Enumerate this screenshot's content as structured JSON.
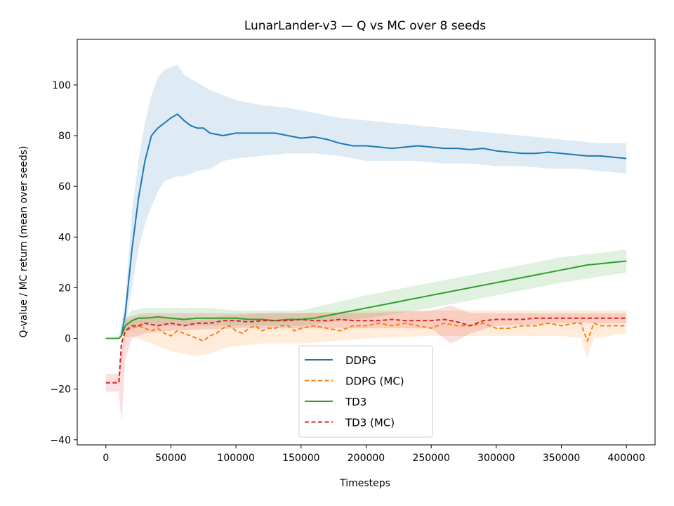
{
  "chart_data": {
    "type": "line",
    "title": "LunarLander-v3 — Q vs MC over 8 seeds",
    "xlabel": "Timesteps",
    "ylabel": "Q-value / MC return (mean over seeds)",
    "xlim": [
      -22000,
      422000
    ],
    "ylim": [
      -42,
      118
    ],
    "xticks": [
      0,
      50000,
      100000,
      150000,
      200000,
      250000,
      300000,
      350000,
      400000
    ],
    "xtick_labels": [
      "0",
      "50000",
      "100000",
      "150000",
      "200000",
      "250000",
      "300000",
      "350000",
      "400000"
    ],
    "yticks": [
      -40,
      -20,
      0,
      20,
      40,
      60,
      80,
      100
    ],
    "ytick_labels": [
      "−40",
      "−20",
      "0",
      "20",
      "40",
      "60",
      "80",
      "100"
    ],
    "grid": false,
    "legend_position": "lower-center",
    "series": [
      {
        "name": "DDPG",
        "color": "#1f77b4",
        "dash": "solid",
        "points": [
          [
            0,
            0
          ],
          [
            5000,
            0
          ],
          [
            10000,
            0
          ],
          [
            12000,
            1
          ],
          [
            15000,
            10
          ],
          [
            20000,
            35
          ],
          [
            25000,
            55
          ],
          [
            30000,
            70
          ],
          [
            35000,
            80
          ],
          [
            40000,
            83
          ],
          [
            45000,
            85
          ],
          [
            50000,
            87
          ],
          [
            55000,
            88.5
          ],
          [
            60000,
            86
          ],
          [
            65000,
            84
          ],
          [
            70000,
            83
          ],
          [
            75000,
            83
          ],
          [
            80000,
            81
          ],
          [
            90000,
            80
          ],
          [
            100000,
            81
          ],
          [
            110000,
            81
          ],
          [
            120000,
            81
          ],
          [
            130000,
            81
          ],
          [
            140000,
            80
          ],
          [
            150000,
            79
          ],
          [
            160000,
            79.5
          ],
          [
            170000,
            78.5
          ],
          [
            180000,
            77
          ],
          [
            190000,
            76
          ],
          [
            200000,
            76
          ],
          [
            210000,
            75.5
          ],
          [
            220000,
            75
          ],
          [
            230000,
            75.5
          ],
          [
            240000,
            76
          ],
          [
            250000,
            75.5
          ],
          [
            260000,
            75
          ],
          [
            270000,
            75
          ],
          [
            280000,
            74.5
          ],
          [
            290000,
            75
          ],
          [
            300000,
            74
          ],
          [
            310000,
            73.5
          ],
          [
            320000,
            73
          ],
          [
            330000,
            73
          ],
          [
            340000,
            73.5
          ],
          [
            350000,
            73
          ],
          [
            360000,
            72.5
          ],
          [
            370000,
            72
          ],
          [
            380000,
            72
          ],
          [
            390000,
            71.5
          ],
          [
            400000,
            71
          ]
        ],
        "band": [
          [
            0,
            0,
            0
          ],
          [
            10000,
            0,
            0
          ],
          [
            15000,
            5,
            15
          ],
          [
            20000,
            20,
            50
          ],
          [
            25000,
            35,
            70
          ],
          [
            30000,
            45,
            85
          ],
          [
            35000,
            52,
            96
          ],
          [
            40000,
            58,
            103
          ],
          [
            45000,
            62,
            106
          ],
          [
            50000,
            63,
            107
          ],
          [
            55000,
            64,
            108
          ],
          [
            60000,
            64,
            104
          ],
          [
            70000,
            66,
            101
          ],
          [
            80000,
            67,
            98
          ],
          [
            90000,
            70,
            96
          ],
          [
            100000,
            71,
            94
          ],
          [
            120000,
            72,
            92
          ],
          [
            140000,
            73,
            91
          ],
          [
            160000,
            73,
            89
          ],
          [
            180000,
            72,
            87
          ],
          [
            200000,
            70,
            86
          ],
          [
            220000,
            70,
            85
          ],
          [
            240000,
            70,
            84
          ],
          [
            260000,
            69,
            83
          ],
          [
            280000,
            69,
            82
          ],
          [
            300000,
            68,
            81
          ],
          [
            320000,
            68,
            80
          ],
          [
            340000,
            67,
            79
          ],
          [
            360000,
            67,
            78
          ],
          [
            380000,
            66,
            77
          ],
          [
            400000,
            65,
            77
          ]
        ]
      },
      {
        "name": "DDPG (MC)",
        "color": "#ff7f0e",
        "dash": "dashed",
        "points": [
          [
            0,
            -17.5
          ],
          [
            5000,
            -17.5
          ],
          [
            10000,
            -17.5
          ],
          [
            12000,
            -2
          ],
          [
            15000,
            3
          ],
          [
            20000,
            4
          ],
          [
            25000,
            5
          ],
          [
            30000,
            4
          ],
          [
            35000,
            3
          ],
          [
            40000,
            4
          ],
          [
            45000,
            2
          ],
          [
            50000,
            1
          ],
          [
            55000,
            3
          ],
          [
            60000,
            2
          ],
          [
            65000,
            1
          ],
          [
            70000,
            0
          ],
          [
            75000,
            -1
          ],
          [
            80000,
            1
          ],
          [
            85000,
            2
          ],
          [
            90000,
            4
          ],
          [
            95000,
            5
          ],
          [
            100000,
            3
          ],
          [
            105000,
            2
          ],
          [
            110000,
            4
          ],
          [
            115000,
            5
          ],
          [
            120000,
            3
          ],
          [
            125000,
            4
          ],
          [
            130000,
            4
          ],
          [
            135000,
            5
          ],
          [
            140000,
            5
          ],
          [
            145000,
            3
          ],
          [
            150000,
            4
          ],
          [
            160000,
            5
          ],
          [
            170000,
            4
          ],
          [
            180000,
            3
          ],
          [
            190000,
            5
          ],
          [
            200000,
            5
          ],
          [
            210000,
            6
          ],
          [
            220000,
            5
          ],
          [
            230000,
            6
          ],
          [
            240000,
            5
          ],
          [
            250000,
            4
          ],
          [
            260000,
            6
          ],
          [
            270000,
            5
          ],
          [
            280000,
            5
          ],
          [
            290000,
            6
          ],
          [
            300000,
            4
          ],
          [
            310000,
            4
          ],
          [
            320000,
            5
          ],
          [
            330000,
            5
          ],
          [
            340000,
            6
          ],
          [
            350000,
            5
          ],
          [
            360000,
            6
          ],
          [
            365000,
            6
          ],
          [
            370000,
            -1
          ],
          [
            375000,
            6
          ],
          [
            380000,
            5
          ],
          [
            390000,
            5
          ],
          [
            400000,
            5
          ]
        ],
        "band": [
          [
            0,
            -17.5,
            -17.5
          ],
          [
            10000,
            -17.5,
            -17.5
          ],
          [
            15000,
            0,
            7
          ],
          [
            20000,
            1,
            8
          ],
          [
            30000,
            -1,
            9
          ],
          [
            40000,
            -3,
            8
          ],
          [
            50000,
            -5,
            8
          ],
          [
            60000,
            -6,
            8
          ],
          [
            70000,
            -7,
            7
          ],
          [
            80000,
            -6,
            8
          ],
          [
            90000,
            -4,
            9
          ],
          [
            100000,
            -3,
            9
          ],
          [
            120000,
            -2,
            10
          ],
          [
            150000,
            -2,
            10
          ],
          [
            200000,
            0,
            11
          ],
          [
            250000,
            1,
            11
          ],
          [
            300000,
            1,
            11
          ],
          [
            350000,
            1,
            11
          ],
          [
            365000,
            0,
            11
          ],
          [
            370000,
            -8,
            11
          ],
          [
            375000,
            0,
            11
          ],
          [
            400000,
            2,
            11
          ]
        ]
      },
      {
        "name": "TD3",
        "color": "#2ca02c",
        "dash": "solid",
        "points": [
          [
            0,
            0
          ],
          [
            5000,
            0
          ],
          [
            10000,
            0
          ],
          [
            12000,
            1
          ],
          [
            15000,
            5
          ],
          [
            20000,
            7
          ],
          [
            25000,
            8
          ],
          [
            30000,
            8
          ],
          [
            40000,
            8.5
          ],
          [
            50000,
            8
          ],
          [
            60000,
            7.5
          ],
          [
            70000,
            8
          ],
          [
            80000,
            8
          ],
          [
            90000,
            8
          ],
          [
            100000,
            8
          ],
          [
            110000,
            7.5
          ],
          [
            120000,
            7.5
          ],
          [
            130000,
            7
          ],
          [
            140000,
            7.5
          ],
          [
            150000,
            7.5
          ],
          [
            160000,
            8
          ],
          [
            170000,
            9
          ],
          [
            180000,
            10
          ],
          [
            190000,
            11
          ],
          [
            200000,
            12
          ],
          [
            210000,
            13
          ],
          [
            220000,
            14
          ],
          [
            230000,
            15
          ],
          [
            240000,
            16
          ],
          [
            250000,
            17
          ],
          [
            260000,
            18
          ],
          [
            270000,
            19
          ],
          [
            280000,
            20
          ],
          [
            290000,
            21
          ],
          [
            300000,
            22
          ],
          [
            310000,
            23
          ],
          [
            320000,
            24
          ],
          [
            330000,
            25
          ],
          [
            340000,
            26
          ],
          [
            350000,
            27
          ],
          [
            360000,
            28
          ],
          [
            370000,
            29
          ],
          [
            380000,
            29.5
          ],
          [
            390000,
            30
          ],
          [
            400000,
            30.5
          ]
        ],
        "band": [
          [
            0,
            0,
            0
          ],
          [
            10000,
            0,
            0
          ],
          [
            15000,
            3,
            8
          ],
          [
            20000,
            4,
            11
          ],
          [
            30000,
            5,
            12
          ],
          [
            50000,
            5,
            12
          ],
          [
            80000,
            5,
            12
          ],
          [
            100000,
            5,
            11
          ],
          [
            150000,
            5,
            11
          ],
          [
            200000,
            8,
            17
          ],
          [
            250000,
            12,
            22
          ],
          [
            300000,
            17,
            27
          ],
          [
            350000,
            22,
            32
          ],
          [
            400000,
            26,
            35
          ]
        ]
      },
      {
        "name": "TD3 (MC)",
        "color": "#d62728",
        "dash": "dashed",
        "points": [
          [
            0,
            -17.5
          ],
          [
            5000,
            -17.5
          ],
          [
            10000,
            -17.5
          ],
          [
            12000,
            -2
          ],
          [
            15000,
            3
          ],
          [
            20000,
            5
          ],
          [
            25000,
            5
          ],
          [
            30000,
            6
          ],
          [
            40000,
            5
          ],
          [
            50000,
            6
          ],
          [
            60000,
            5
          ],
          [
            70000,
            6
          ],
          [
            80000,
            6
          ],
          [
            90000,
            7
          ],
          [
            100000,
            7
          ],
          [
            110000,
            6.5
          ],
          [
            120000,
            7
          ],
          [
            130000,
            7
          ],
          [
            140000,
            7
          ],
          [
            150000,
            7.5
          ],
          [
            160000,
            7
          ],
          [
            170000,
            7
          ],
          [
            180000,
            7.5
          ],
          [
            190000,
            7
          ],
          [
            200000,
            7
          ],
          [
            210000,
            7
          ],
          [
            220000,
            7.5
          ],
          [
            230000,
            7
          ],
          [
            240000,
            7
          ],
          [
            250000,
            7
          ],
          [
            260000,
            7.5
          ],
          [
            270000,
            6.5
          ],
          [
            280000,
            5
          ],
          [
            290000,
            7
          ],
          [
            300000,
            7.5
          ],
          [
            310000,
            7.5
          ],
          [
            320000,
            7.5
          ],
          [
            330000,
            8
          ],
          [
            340000,
            8
          ],
          [
            350000,
            8
          ],
          [
            360000,
            8
          ],
          [
            370000,
            8
          ],
          [
            380000,
            8
          ],
          [
            390000,
            8
          ],
          [
            400000,
            8
          ]
        ],
        "band": [
          [
            0,
            -21,
            -14
          ],
          [
            10000,
            -21,
            -14
          ],
          [
            12000,
            -33,
            -5
          ],
          [
            15000,
            -8,
            8
          ],
          [
            20000,
            0,
            9
          ],
          [
            30000,
            2,
            10
          ],
          [
            50000,
            3,
            10
          ],
          [
            100000,
            4,
            10
          ],
          [
            150000,
            4,
            10
          ],
          [
            200000,
            4,
            10
          ],
          [
            250000,
            4,
            11
          ],
          [
            265000,
            -2,
            13
          ],
          [
            270000,
            -1,
            12
          ],
          [
            280000,
            2,
            10
          ],
          [
            300000,
            5,
            10
          ],
          [
            350000,
            6,
            10
          ],
          [
            400000,
            6,
            10
          ]
        ]
      }
    ]
  }
}
